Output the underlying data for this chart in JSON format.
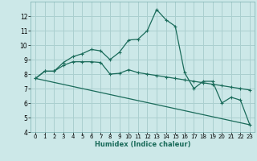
{
  "xlabel": "Humidex (Indice chaleur)",
  "ylabel": "",
  "bg_color": "#cce8e8",
  "grid_color": "#aacfcf",
  "line_color": "#1a6b5a",
  "xlim": [
    -0.5,
    23.5
  ],
  "ylim": [
    4,
    13
  ],
  "yticks": [
    4,
    5,
    6,
    7,
    8,
    9,
    10,
    11,
    12
  ],
  "xtick_labels": [
    "0",
    "1",
    "2",
    "3",
    "4",
    "5",
    "6",
    "7",
    "8",
    "9",
    "10",
    "11",
    "12",
    "13",
    "14",
    "15",
    "16",
    "17",
    "18",
    "19",
    "20",
    "21",
    "22",
    "23"
  ],
  "xtick_vals": [
    0,
    1,
    2,
    3,
    4,
    5,
    6,
    7,
    8,
    9,
    10,
    11,
    12,
    13,
    14,
    15,
    16,
    17,
    18,
    19,
    20,
    21,
    22,
    23
  ],
  "series1_x": [
    0,
    1,
    2,
    3,
    4,
    5,
    6,
    7,
    8,
    9,
    10,
    11,
    12,
    13,
    14,
    15,
    16,
    17,
    18,
    19,
    20,
    21,
    22,
    23
  ],
  "series1_y": [
    7.7,
    8.2,
    8.2,
    8.8,
    9.2,
    9.4,
    9.7,
    9.6,
    9.0,
    9.5,
    10.35,
    10.4,
    11.0,
    12.45,
    11.75,
    11.3,
    8.1,
    7.0,
    7.5,
    7.5,
    6.0,
    6.4,
    6.2,
    4.5
  ],
  "series2_x": [
    0,
    1,
    2,
    3,
    4,
    5,
    6,
    7,
    8,
    9,
    10,
    11,
    12,
    13,
    14,
    15,
    16,
    17,
    18,
    19,
    20,
    21,
    22,
    23
  ],
  "series2_y": [
    7.7,
    8.2,
    8.2,
    8.6,
    8.85,
    8.85,
    8.85,
    8.8,
    8.0,
    8.05,
    8.3,
    8.1,
    8.0,
    7.9,
    7.8,
    7.7,
    7.6,
    7.5,
    7.4,
    7.3,
    7.2,
    7.1,
    7.0,
    6.9
  ],
  "series3_x": [
    0,
    23
  ],
  "series3_y": [
    7.7,
    4.5
  ]
}
